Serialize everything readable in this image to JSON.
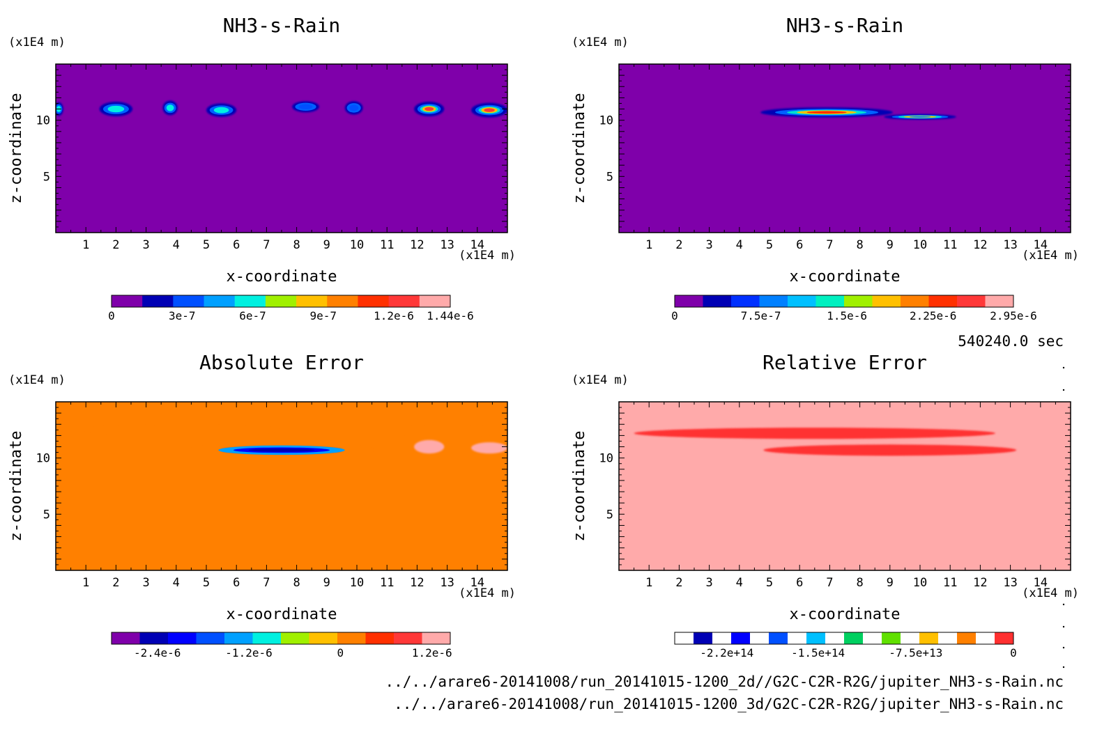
{
  "time_label": "540240.0 sec",
  "files": [
    "../../arare6-20141008/run_20141015-1200_2d//G2C-C2R-R2G/jupiter_NH3-s-Rain.nc",
    "../../arare6-20141008/run_20141015-1200_3d/G2C-C2R-R2G/jupiter_NH3-s-Rain.nc"
  ],
  "chart_data": [
    {
      "type": "heatmap",
      "title": "NH3-s-Rain",
      "xlabel": "x-coordinate",
      "ylabel": "z-coordinate",
      "x_unit": "(x1E4 m)",
      "y_unit": "(x1E4 m)",
      "xlim": [
        0,
        15
      ],
      "ylim": [
        0,
        15
      ],
      "xticks": [
        "1",
        "2",
        "3",
        "4",
        "5",
        "6",
        "7",
        "8",
        "9",
        "10",
        "11",
        "12",
        "13",
        "14"
      ],
      "yticks": [
        "5",
        "10"
      ],
      "background_color": "#7f00aa",
      "colorbar": {
        "colors": [
          "#7f00aa",
          "#0000b4",
          "#0050ff",
          "#00a0ff",
          "#00f0e0",
          "#a0f000",
          "#ffc000",
          "#ff8000",
          "#ff3000",
          "#ff3838",
          "#ffaaaa"
        ],
        "tick_labels": [
          "0",
          "3e-7",
          "6e-7",
          "9e-7",
          "1.2e-6",
          "1.44e-6"
        ],
        "tick_values": [
          0,
          3e-07,
          6e-07,
          9e-07,
          1.2e-06,
          1.44e-06
        ],
        "min": 0,
        "max": 1.44e-06
      },
      "features": [
        {
          "x": 0.1,
          "z": 11.0,
          "rx": 0.15,
          "rz": 0.6,
          "value": 6e-07
        },
        {
          "x": 2.0,
          "z": 11.0,
          "rx": 0.55,
          "rz": 0.65,
          "value": 6e-07
        },
        {
          "x": 3.8,
          "z": 11.1,
          "rx": 0.25,
          "rz": 0.65,
          "value": 6e-07
        },
        {
          "x": 5.5,
          "z": 10.9,
          "rx": 0.5,
          "rz": 0.6,
          "value": 6e-07
        },
        {
          "x": 8.3,
          "z": 11.2,
          "rx": 0.45,
          "rz": 0.5,
          "value": 3e-07
        },
        {
          "x": 9.9,
          "z": 11.1,
          "rx": 0.3,
          "rz": 0.6,
          "value": 3e-07
        },
        {
          "x": 12.4,
          "z": 11.0,
          "rx": 0.5,
          "rz": 0.65,
          "value": 1.2e-06
        },
        {
          "x": 14.4,
          "z": 10.9,
          "rx": 0.6,
          "rz": 0.65,
          "value": 1.2e-06
        }
      ]
    },
    {
      "type": "heatmap",
      "title": "NH3-s-Rain",
      "xlabel": "x-coordinate",
      "ylabel": "z-coordinate",
      "x_unit": "(x1E4 m)",
      "y_unit": "(x1E4 m)",
      "xlim": [
        0,
        15
      ],
      "ylim": [
        0,
        15
      ],
      "xticks": [
        "1",
        "2",
        "3",
        "4",
        "5",
        "6",
        "7",
        "8",
        "9",
        "10",
        "11",
        "12",
        "13",
        "14"
      ],
      "yticks": [
        "5",
        "10"
      ],
      "background_color": "#7f00aa",
      "colorbar": {
        "colors": [
          "#7f00aa",
          "#0000b4",
          "#0030ff",
          "#0080ff",
          "#00c0ff",
          "#00f0c0",
          "#a0f000",
          "#ffc000",
          "#ff8000",
          "#ff3000",
          "#ff3838",
          "#ffaaaa"
        ],
        "tick_labels": [
          "0",
          "7.5e-7",
          "1.5e-6",
          "2.25e-6",
          "2.95e-6"
        ],
        "tick_values": [
          0,
          7.5e-07,
          1.5e-06,
          2.25e-06,
          2.95e-06
        ],
        "min": 0,
        "max": 2.95e-06
      },
      "features": [
        {
          "x": 6.9,
          "z": 10.7,
          "rx": 2.2,
          "rz": 0.45,
          "value": 2.25e-06
        },
        {
          "x": 10.0,
          "z": 10.3,
          "rx": 1.2,
          "rz": 0.25,
          "value": 7.5e-07
        }
      ]
    },
    {
      "type": "heatmap",
      "title": "Absolute Error",
      "xlabel": "x-coordinate",
      "ylabel": "z-coordinate",
      "x_unit": "(x1E4 m)",
      "y_unit": "(x1E4 m)",
      "xlim": [
        0,
        15
      ],
      "ylim": [
        0,
        15
      ],
      "xticks": [
        "1",
        "2",
        "3",
        "4",
        "5",
        "6",
        "7",
        "8",
        "9",
        "10",
        "11",
        "12",
        "13",
        "14"
      ],
      "yticks": [
        "5",
        "10"
      ],
      "background_color": "#ff8000",
      "colorbar": {
        "colors": [
          "#7f00aa",
          "#0000b4",
          "#0000ff",
          "#0050ff",
          "#00a0ff",
          "#00f0e0",
          "#a0f000",
          "#ffc000",
          "#ff8000",
          "#ff3000",
          "#ff3838",
          "#ffaaaa"
        ],
        "tick_labels": [
          "-2.4e-6",
          "-1.2e-6",
          "0",
          "1.2e-6"
        ],
        "tick_values": [
          -2.4e-06,
          -1.2e-06,
          0,
          1.2e-06
        ],
        "min": -3e-06,
        "max": 1.44e-06
      },
      "features": [
        {
          "x": 4.2,
          "z": 12.5,
          "rx": 3.2,
          "rz": 0.35,
          "value": 2e-07
        },
        {
          "x": 13.0,
          "z": 12.4,
          "rx": 1.8,
          "rz": 0.4,
          "value": 2e-07
        },
        {
          "x": 7.5,
          "z": 10.7,
          "rx": 3.0,
          "rz": 0.55,
          "value": 2e-07
        },
        {
          "x": 7.5,
          "z": 10.7,
          "rx": 2.0,
          "rz": 0.3,
          "value": -2.4e-06
        },
        {
          "x": 12.4,
          "z": 11.0,
          "rx": 0.5,
          "rz": 0.6,
          "value": 1.2e-06
        },
        {
          "x": 14.4,
          "z": 10.9,
          "rx": 0.6,
          "rz": 0.5,
          "value": 1.2e-06
        }
      ]
    },
    {
      "type": "heatmap",
      "title": "Relative Error",
      "xlabel": "x-coordinate",
      "ylabel": "z-coordinate",
      "x_unit": "(x1E4 m)",
      "y_unit": "(x1E4 m)",
      "xlim": [
        0,
        15
      ],
      "ylim": [
        0,
        15
      ],
      "xticks": [
        "1",
        "2",
        "3",
        "4",
        "5",
        "6",
        "7",
        "8",
        "9",
        "10",
        "11",
        "12",
        "13",
        "14"
      ],
      "yticks": [
        "5",
        "10"
      ],
      "background_color": "#ffaaaa",
      "colorbar": {
        "colors": [
          "#ffffff",
          "#0000b4",
          "#ffffff",
          "#0000ff",
          "#ffffff",
          "#0050ff",
          "#ffffff",
          "#00c0ff",
          "#ffffff",
          "#00d060",
          "#ffffff",
          "#60e000",
          "#ffffff",
          "#ffc000",
          "#ffffff",
          "#ff8000",
          "#ffffff",
          "#ff3030"
        ],
        "tick_labels": [
          "-2.2e+14",
          "-1.5e+14",
          "-7.5e+13",
          "0"
        ],
        "tick_values": [
          -220000000000000.0,
          -150000000000000.0,
          -75000000000000.0,
          0
        ],
        "min": -260000000000000.0,
        "max": 0
      },
      "features": [
        {
          "x": 6.5,
          "z": 12.2,
          "rx": 6.0,
          "rz": 0.5,
          "value": 0
        },
        {
          "x": 9.0,
          "z": 10.7,
          "rx": 4.2,
          "rz": 0.5,
          "value": 0
        }
      ]
    }
  ]
}
